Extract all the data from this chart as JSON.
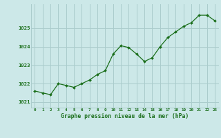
{
  "x": [
    0,
    1,
    2,
    3,
    4,
    5,
    6,
    7,
    8,
    9,
    10,
    11,
    12,
    13,
    14,
    15,
    16,
    17,
    18,
    19,
    20,
    21,
    22,
    23
  ],
  "y": [
    1021.6,
    1021.5,
    1021.4,
    1022.0,
    1021.9,
    1021.8,
    1022.0,
    1022.2,
    1022.5,
    1022.7,
    1023.6,
    1024.05,
    1023.95,
    1023.6,
    1023.2,
    1023.4,
    1024.0,
    1024.5,
    1024.8,
    1025.1,
    1025.3,
    1025.7,
    1025.7,
    1025.4
  ],
  "line_color": "#1a6e1a",
  "marker_color": "#1a6e1a",
  "bg_color": "#cce8e8",
  "grid_color": "#aacccc",
  "axis_label_color": "#1a6e1a",
  "tick_label_color": "#1a6e1a",
  "xlabel": "Graphe pression niveau de la mer (hPa)",
  "ylim": [
    1020.7,
    1026.3
  ],
  "yticks": [
    1021,
    1022,
    1023,
    1024,
    1025
  ],
  "xlim": [
    -0.5,
    23.5
  ],
  "xticks": [
    0,
    1,
    2,
    3,
    4,
    5,
    6,
    7,
    8,
    9,
    10,
    11,
    12,
    13,
    14,
    15,
    16,
    17,
    18,
    19,
    20,
    21,
    22,
    23
  ]
}
